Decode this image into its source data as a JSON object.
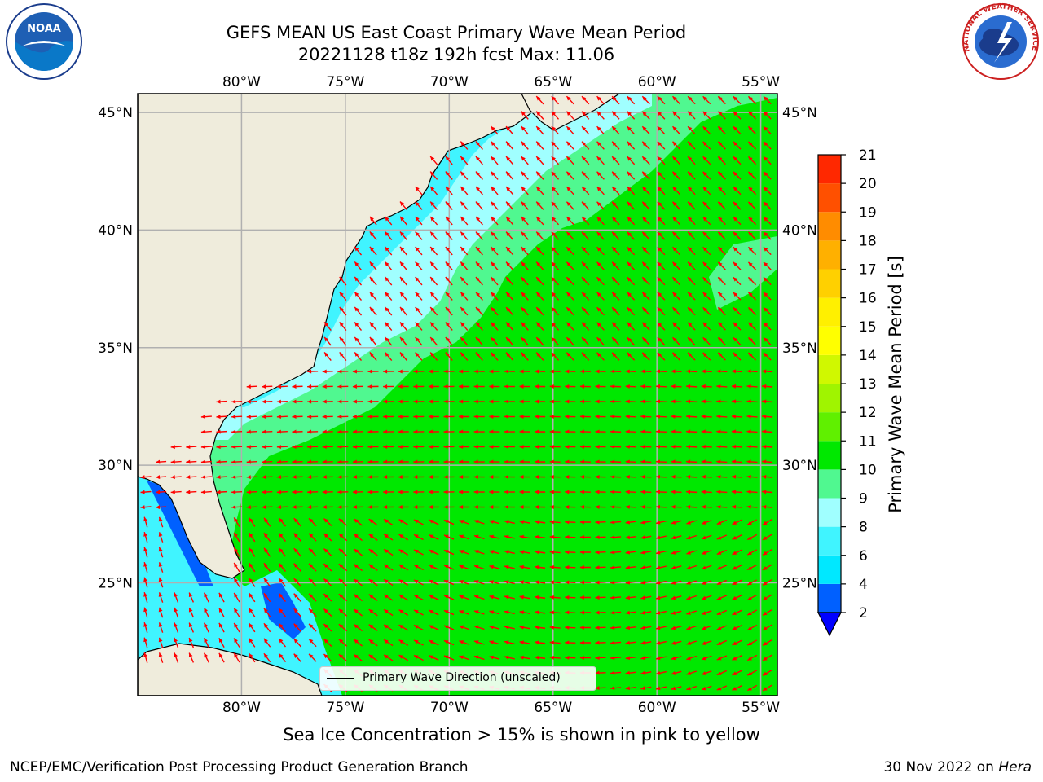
{
  "title_line1": "GEFS MEAN US East Coast Primary Wave Mean Period",
  "title_line2": "20221128 t18z 192h fcst   Max: 11.06",
  "map": {
    "lon_labels": [
      "80°W",
      "75°W",
      "70°W",
      "65°W",
      "60°W",
      "55°W"
    ],
    "lat_labels": [
      "45°N",
      "40°N",
      "35°N",
      "30°N",
      "25°N"
    ],
    "lon_values": [
      -80,
      -75,
      -70,
      -65,
      -60,
      -55
    ],
    "lat_values": [
      45,
      40,
      35,
      30,
      25
    ],
    "lon_range": [
      -85,
      -54.2
    ],
    "lat_range": [
      20.2,
      45.8
    ],
    "land_color": "#efecdc",
    "grid_color": "#b0b0b0",
    "arrow_color": "#ff0000"
  },
  "colorbar": {
    "label": "Primary Wave Mean Period [s]",
    "ticks": [
      "2",
      "4",
      "6",
      "8",
      "9",
      "10",
      "11",
      "12",
      "13",
      "14",
      "15",
      "16",
      "17",
      "18",
      "19",
      "20",
      "21"
    ],
    "colors": [
      "#0060ff",
      "#00e8ff",
      "#40f4ff",
      "#a0ffff",
      "#50f890",
      "#00e800",
      "#60f000",
      "#a0f400",
      "#d0f800",
      "#ffff00",
      "#fff000",
      "#ffd000",
      "#ffb000",
      "#ff8c00",
      "#ff5000",
      "#ff2800"
    ],
    "extend_color": "#0000ff"
  },
  "legend": {
    "label": "Primary Wave Direction (unscaled)"
  },
  "note": "Sea Ice Concentration > 15% is shown in pink to yellow",
  "footer": {
    "left": "NCEP/EMC/Verification Post Processing Product Generation Branch",
    "right_date": "30 Nov 2022 on ",
    "right_system": "Hera"
  },
  "logos": {
    "noaa_text": "NOAA",
    "nws_text": "NATIONAL WEATHER SERVICE"
  }
}
